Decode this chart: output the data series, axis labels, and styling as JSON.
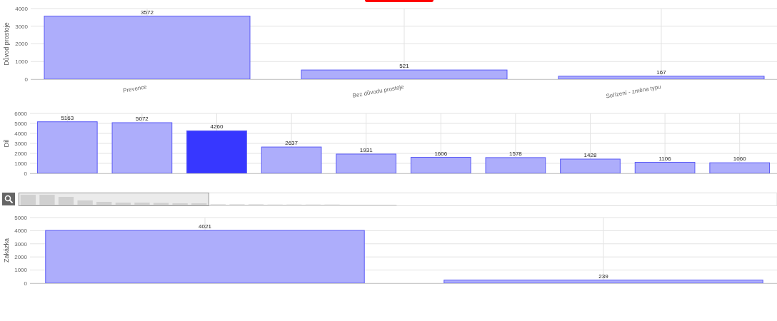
{
  "chart_data": [
    {
      "type": "bar",
      "ylabel": "Důvod prostoje",
      "categories": [
        "Prevence",
        "Bez důvodu prostoje",
        "Seřízení - změna typu"
      ],
      "values": [
        3572,
        521,
        167
      ],
      "color": "#adadfb",
      "ylim": [
        0,
        4000
      ],
      "yticks": [
        0,
        1000,
        2000,
        3000,
        4000
      ],
      "grid": true,
      "data_labels": true
    },
    {
      "type": "bar",
      "ylabel": "Díl",
      "categories": [
        null,
        null,
        null,
        null,
        null,
        null,
        null,
        null,
        null,
        null
      ],
      "values": [
        5163,
        5072,
        4260,
        2637,
        1931,
        1606,
        1578,
        1428,
        1106,
        1060
      ],
      "colors": [
        "#adadfb",
        "#adadfb",
        "#3737ff",
        "#adadfb",
        "#adadfb",
        "#adadfb",
        "#adadfb",
        "#adadfb",
        "#adadfb",
        "#adadfb"
      ],
      "ylim": [
        0,
        6000
      ],
      "yticks": [
        0,
        1000,
        2000,
        3000,
        4000,
        5000,
        6000
      ],
      "grid": true,
      "data_labels": true
    },
    {
      "type": "bar",
      "ylabel": "Zakázka",
      "categories": [
        null,
        null
      ],
      "values": [
        4021,
        239
      ],
      "color": "#adadfb",
      "ylim": [
        0,
        5000
      ],
      "yticks": [
        0,
        1000,
        2000,
        3000,
        4000,
        5000
      ],
      "grid": true,
      "data_labels": true
    }
  ]
}
